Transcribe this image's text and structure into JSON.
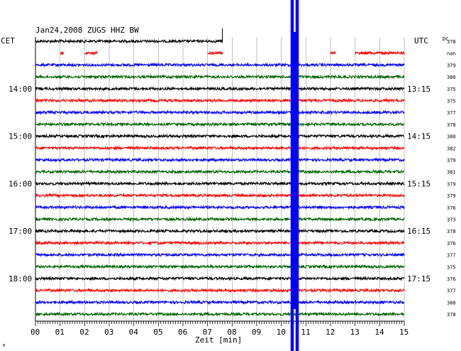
{
  "chart_data": {
    "type": "line",
    "title": "Jan24,2008   ZUGS HHZ BW",
    "left_axis_label": "CET",
    "right_axis_label": "UTC",
    "dc_label": "DC",
    "xlabel": "Zeit [min]",
    "xlim": [
      0,
      15
    ],
    "x_ticks": [
      "00",
      "01",
      "02",
      "03",
      "04",
      "05",
      "06",
      "07",
      "08",
      "09",
      "10",
      "11",
      "12",
      "13",
      "14",
      "15"
    ],
    "rows": 24,
    "row_colors": [
      "#000000",
      "#ff0000",
      "#0000ff",
      "#006400"
    ],
    "left_hour_labels": [
      {
        "row": 4,
        "label": "14:00"
      },
      {
        "row": 8,
        "label": "15:00"
      },
      {
        "row": 12,
        "label": "16:00"
      },
      {
        "row": 16,
        "label": "17:00"
      },
      {
        "row": 20,
        "label": "18:00"
      }
    ],
    "right_time_labels": [
      {
        "row": 4,
        "label": "13:15"
      },
      {
        "row": 8,
        "label": "14:15"
      },
      {
        "row": 12,
        "label": "15:15"
      },
      {
        "row": 16,
        "label": "16:15"
      },
      {
        "row": 20,
        "label": "17:15"
      }
    ],
    "dc_values": [
      "378",
      "nan",
      "379",
      "380",
      "375",
      "375",
      "377",
      "378",
      "380",
      "382",
      "379",
      "381",
      "379",
      "379",
      "376",
      "373",
      "378",
      "376",
      "377",
      "375",
      "376",
      "377",
      "380",
      "378"
    ],
    "corner_mark": "M",
    "event_minute": 10.55,
    "first_row_end_minute": 7.6,
    "red_gap_segments": [
      [
        1.0,
        1.15
      ],
      [
        2.0,
        2.5
      ],
      [
        7.0,
        7.6
      ],
      [
        12.0,
        12.2
      ],
      [
        13.0,
        15.0
      ]
    ]
  }
}
